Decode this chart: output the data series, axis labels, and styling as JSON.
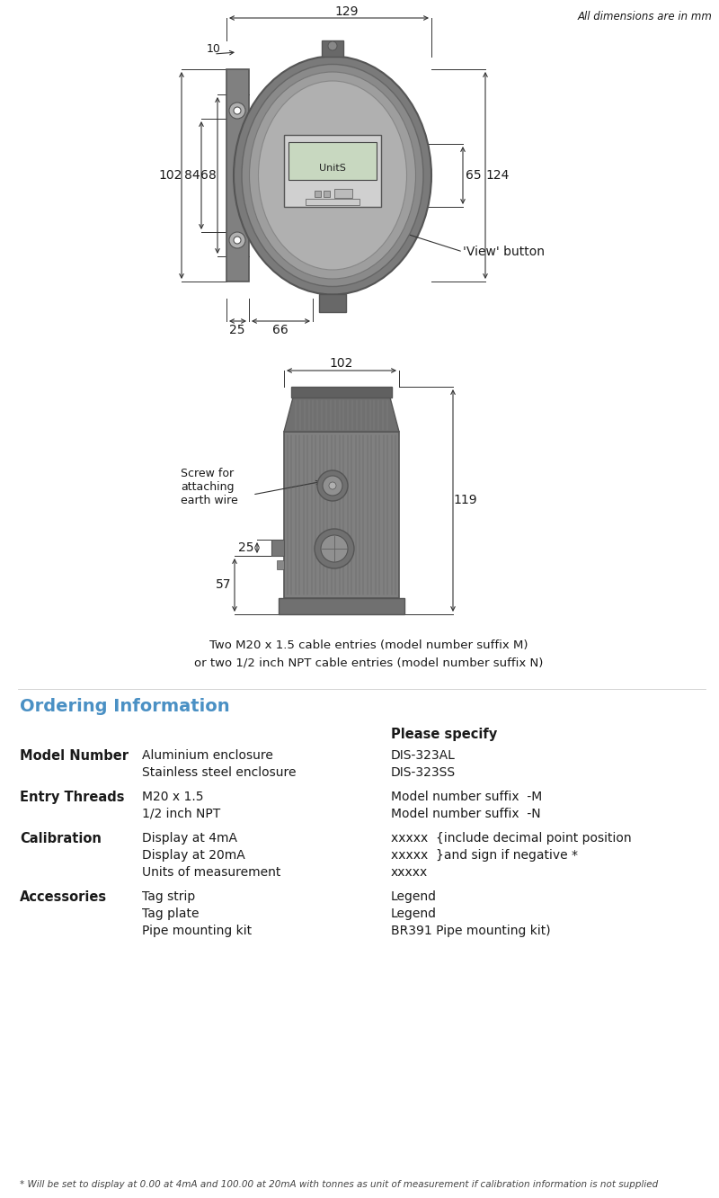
{
  "bg_color": "#ffffff",
  "drawing_color": "#4a4a4a",
  "dim_line_color": "#333333",
  "text_color": "#1a1a1a",
  "ordering_title_color": "#4a90c4",
  "title_note": "All dimensions are in mm",
  "cable_note_line1": "Two M20 x 1.5 cable entries (model number suffix M)",
  "cable_note_line2": "or two 1/2 inch NPT cable entries (model number suffix N)",
  "footnote": "* Will be set to display at 0.00 at 4mA and 100.00 at 20mA with tonnes as unit of measurement if calibration information is not supplied",
  "ordering_title": "Ordering Information",
  "please_specify": "Please specify",
  "table": [
    {
      "field": "Model Number",
      "lines": [
        {
          "desc": "Aluminium enclosure",
          "spec": "DIS-323AL"
        },
        {
          "desc": "Stainless steel enclosure",
          "spec": "DIS-323SS"
        }
      ]
    },
    {
      "field": "Entry Threads",
      "lines": [
        {
          "desc": "M20 x 1.5",
          "spec": "Model number suffix  -M"
        },
        {
          "desc": "1/2 inch NPT",
          "spec": "Model number suffix  -N"
        }
      ]
    },
    {
      "field": "Calibration",
      "lines": [
        {
          "desc": "Display at 4mA",
          "spec": "xxxxx  {include decimal point position"
        },
        {
          "desc": "Display at 20mA",
          "spec": "xxxxx  }and sign if negative *"
        },
        {
          "desc": "Units of measurement",
          "spec": "xxxxx"
        }
      ]
    },
    {
      "field": "Accessories",
      "lines": [
        {
          "desc": "Tag strip",
          "spec": "Legend"
        },
        {
          "desc": "Tag plate",
          "spec": "Legend"
        },
        {
          "desc": "Pipe mounting kit",
          "spec": "BR391 Pipe mounting kit)"
        }
      ]
    }
  ]
}
